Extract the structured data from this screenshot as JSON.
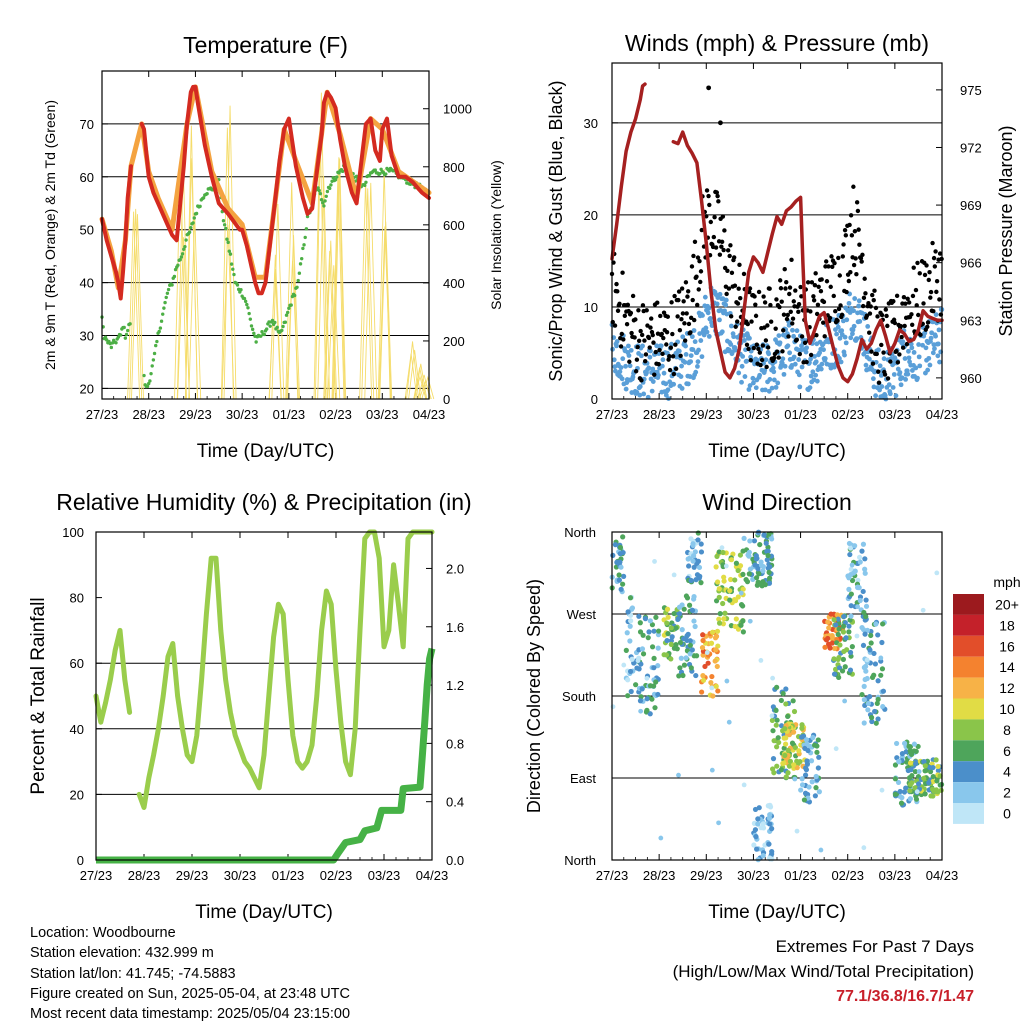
{
  "x_ticks": [
    "27/23",
    "28/23",
    "29/23",
    "30/23",
    "01/23",
    "02/23",
    "03/23",
    "04/23"
  ],
  "colors": {
    "temp_2m": "#d42a20",
    "temp_9m": "#f4a340",
    "dewpoint": "#4caf45",
    "solar": "#f5dc6a",
    "gust": "#000000",
    "wind": "#5a9fd8",
    "pressure": "#a52020",
    "rh": "#9acd4c",
    "precip": "#46b246",
    "extremes": "#c8202a"
  },
  "chart_data": [
    {
      "id": "temperature",
      "type": "line",
      "title": "Temperature (F)",
      "xlabel": "Time (Day/UTC)",
      "ylabel": "2m & 9m T (Red, Orange) & 2m Td (Green)",
      "y2label": "Solar Insolation (Yellow)",
      "x_range": [
        0,
        7
      ],
      "ylim": [
        18,
        80
      ],
      "y2lim": [
        0,
        1130
      ],
      "yticks": [
        20,
        30,
        40,
        50,
        60,
        70
      ],
      "y2ticks": [
        0,
        200,
        400,
        600,
        800,
        1000
      ],
      "grid_y": [
        20,
        30,
        40,
        50,
        60,
        70
      ],
      "series": [
        {
          "name": "2m T",
          "axis": "left",
          "x": [
            0,
            0.1,
            0.2,
            0.3,
            0.35,
            0.4,
            0.45,
            0.5,
            0.55,
            0.62,
            0.68,
            0.72,
            0.85,
            0.9,
            1.0,
            1.1,
            1.2,
            1.4,
            1.5,
            1.6,
            1.75,
            1.82,
            1.9,
            1.95,
            2.0,
            2.05,
            2.2,
            2.35,
            2.5,
            2.7,
            2.95,
            3.0,
            3.1,
            3.2,
            3.28,
            3.35,
            3.42,
            3.5,
            3.7,
            3.8,
            3.9,
            4.0,
            4.15,
            4.3,
            4.4,
            4.5,
            4.6,
            4.7,
            4.75,
            4.82,
            4.9,
            5.0,
            5.1,
            5.2,
            5.35,
            5.45,
            5.5,
            5.58,
            5.65,
            5.75,
            5.85,
            5.95,
            6.0,
            6.1,
            6.2,
            6.35,
            6.5,
            6.65,
            6.75,
            6.85,
            7.0
          ],
          "y": [
            52,
            48,
            45,
            42,
            40,
            37,
            42,
            48,
            56,
            62,
            null,
            null,
            70,
            69,
            60,
            57,
            55,
            51,
            49,
            48,
            62,
            70,
            76,
            77,
            77,
            74,
            66,
            60,
            55,
            53,
            50,
            50,
            47,
            43,
            40,
            38,
            38,
            40,
            55,
            63,
            69,
            71,
            62,
            56,
            53,
            54,
            61,
            68,
            74,
            76,
            75,
            73,
            67,
            62,
            57,
            55,
            59,
            65,
            70,
            71,
            65,
            63,
            69,
            71,
            64,
            60,
            60,
            59,
            58,
            57,
            56
          ]
        },
        {
          "name": "9m T",
          "axis": "left",
          "x": [
            0,
            0.2,
            0.35,
            0.5,
            0.62,
            0.85,
            1.0,
            1.2,
            1.5,
            1.82,
            2.0,
            2.35,
            2.7,
            3.0,
            3.28,
            3.5,
            3.9,
            4.15,
            4.5,
            4.82,
            5.1,
            5.45,
            5.75,
            6.0,
            6.35,
            7.0
          ],
          "y": [
            52,
            46,
            39,
            48,
            62,
            70,
            61,
            56,
            50,
            70,
            77,
            61,
            54,
            51,
            41,
            41,
            69,
            63,
            55,
            76,
            68,
            56,
            71,
            69,
            61,
            57
          ]
        },
        {
          "name": "2m Td",
          "axis": "left",
          "x": [
            0,
            0.05,
            0.1,
            0.2,
            0.3,
            0.4,
            0.45,
            0.5,
            0.55,
            0.62,
            0.8,
            0.9,
            0.95,
            1.0,
            1.1,
            1.2,
            1.3,
            1.4,
            1.5,
            1.6,
            1.7,
            1.8,
            1.9,
            2.0,
            2.2,
            2.4,
            2.5,
            2.6,
            2.75,
            2.85,
            3.0,
            3.1,
            3.2,
            3.3,
            3.5,
            3.65,
            3.8,
            3.9,
            4.0,
            4.2,
            4.3,
            4.4,
            4.6,
            4.7,
            4.75,
            4.85,
            5.0,
            5.2,
            5.4,
            5.5,
            5.6,
            5.7,
            5.8,
            6.0,
            6.2,
            6.4,
            6.6,
            6.8,
            7.0
          ],
          "y": [
            33,
            30,
            29,
            28,
            29,
            30,
            32,
            30,
            31,
            33,
            null,
            22,
            20,
            21,
            25,
            30,
            34,
            38,
            40,
            43,
            45,
            48,
            50,
            53,
            57,
            58,
            59,
            52,
            45,
            40,
            38,
            36,
            32,
            29,
            31,
            33,
            30,
            32,
            35,
            40,
            46,
            52,
            58,
            56,
            55,
            58,
            60,
            62,
            60,
            59,
            58,
            60,
            61,
            61,
            61,
            60,
            59,
            58,
            57
          ]
        },
        {
          "name": "Solar",
          "axis": "right",
          "peaks": [
            {
              "x": 0.7,
              "v": 780
            },
            {
              "x": 1.7,
              "v": 950
            },
            {
              "x": 1.95,
              "v": 1050
            },
            {
              "x": 2.7,
              "v": 1080
            },
            {
              "x": 3.72,
              "v": 700
            },
            {
              "x": 4.1,
              "v": 820
            },
            {
              "x": 4.7,
              "v": 1070
            },
            {
              "x": 4.92,
              "v": 600
            },
            {
              "x": 5.1,
              "v": 980
            },
            {
              "x": 5.7,
              "v": 1050
            },
            {
              "x": 6.1,
              "v": 950
            },
            {
              "x": 6.65,
              "v": 220
            },
            {
              "x": 6.8,
              "v": 150
            },
            {
              "x": 6.92,
              "v": 100
            }
          ]
        }
      ]
    },
    {
      "id": "winds",
      "type": "scatter",
      "title": "Winds (mph) & Pressure (mb)",
      "xlabel": "Time (Day/UTC)",
      "ylabel": "Sonic/Prop Wind & Gust (Blue, Black)",
      "y2label": "Station Pressure (Maroon)",
      "x_range": [
        0,
        7
      ],
      "ylim": [
        0,
        36.5
      ],
      "y2lim": [
        958.9,
        976.4
      ],
      "yticks": [
        0,
        10,
        20,
        30
      ],
      "y2ticks": [
        960,
        963,
        966,
        969,
        972,
        975
      ],
      "grid_y": [
        10,
        20,
        30
      ],
      "wind_profile": {
        "x": [
          0,
          0.3,
          0.6,
          0.9,
          1.2,
          1.5,
          1.7,
          1.9,
          2.0,
          2.1,
          2.3,
          2.5,
          2.7,
          2.9,
          3.0,
          3.2,
          3.5,
          3.8,
          4.0,
          4.2,
          4.4,
          4.6,
          4.9,
          5.1,
          5.3,
          5.5,
          5.7,
          6.0,
          6.2,
          6.5,
          6.8,
          7.0
        ],
        "wind": [
          6,
          4,
          3,
          3,
          3,
          4,
          5,
          7,
          9,
          10,
          9,
          7,
          5,
          4,
          3,
          3,
          4,
          6,
          4,
          4,
          5,
          6,
          7,
          10,
          8,
          4,
          2,
          3,
          5,
          5,
          6,
          7
        ],
        "gust": [
          12,
          8,
          6,
          6,
          6,
          8,
          11,
          17,
          19,
          19,
          17,
          13,
          10,
          8,
          7,
          7,
          8,
          11,
          8,
          8,
          10,
          11,
          13,
          19,
          15,
          8,
          5,
          6,
          9,
          10,
          12,
          13
        ]
      },
      "pressure": {
        "x": [
          0,
          0.1,
          0.2,
          0.3,
          0.4,
          0.5,
          0.6,
          0.65,
          0.7,
          0.75,
          0.8,
          1.0,
          1.2,
          1.3,
          1.4,
          1.5,
          1.6,
          1.7,
          1.8,
          1.9,
          2.0,
          2.1,
          2.2,
          2.4,
          2.5,
          2.6,
          2.7,
          2.8,
          2.9,
          3.0,
          3.1,
          3.2,
          3.3,
          3.4,
          3.5,
          3.6,
          3.7,
          3.8,
          3.9,
          4.0,
          4.05,
          4.1,
          4.2,
          4.3,
          4.4,
          4.5,
          4.6,
          4.7,
          4.8,
          4.9,
          5.0,
          5.1,
          5.2,
          5.3,
          5.4,
          5.5,
          5.6,
          5.7,
          5.8,
          5.9,
          6.0,
          6.1,
          6.2,
          6.3,
          6.4,
          6.5,
          6.6,
          6.7,
          6.8,
          6.9,
          7.0
        ],
        "y": [
          966.2,
          968,
          970,
          971.8,
          972.8,
          973.5,
          974.5,
          975.2,
          975.3,
          null,
          null,
          null,
          null,
          972.3,
          972.2,
          972.8,
          972.1,
          971.7,
          971.2,
          969.2,
          967,
          964.5,
          962.5,
          960.3,
          960,
          960.5,
          961.5,
          963.5,
          965.5,
          966.3,
          966,
          965.5,
          966.5,
          967.5,
          968.4,
          968,
          968.7,
          968.9,
          969.2,
          969.4,
          966,
          963,
          961.8,
          962.5,
          963.2,
          963.4,
          962.5,
          961.5,
          960.6,
          960,
          959.8,
          960.2,
          961,
          962,
          961.5,
          961.8,
          962.5,
          963,
          962.2,
          961.3,
          961.8,
          962.5,
          962.3,
          961.9,
          962,
          962.5,
          963.5,
          963.2,
          963.1,
          963,
          963
        ]
      }
    },
    {
      "id": "humidity",
      "type": "line",
      "title": "Relative Humidity (%) & Precipitation (in)",
      "xlabel": "Time (Day/UTC)",
      "ylabel": "Percent & Total Rainfall",
      "x_range": [
        0,
        7
      ],
      "ylim": [
        0,
        100
      ],
      "y2lim": [
        0,
        2.25
      ],
      "yticks": [
        0,
        20,
        40,
        60,
        80,
        100
      ],
      "y2ticks": [
        0.0,
        0.4,
        0.8,
        1.2,
        1.6,
        2.0
      ],
      "grid_y": [
        0,
        20,
        40,
        60
      ],
      "series": [
        {
          "name": "RH",
          "axis": "left",
          "x": [
            0,
            0.1,
            0.2,
            0.3,
            0.4,
            0.5,
            0.6,
            0.7,
            0.8,
            0.9,
            1.0,
            1.1,
            1.2,
            1.3,
            1.4,
            1.5,
            1.6,
            1.7,
            1.8,
            1.9,
            2.0,
            2.1,
            2.2,
            2.3,
            2.4,
            2.5,
            2.6,
            2.7,
            2.8,
            2.9,
            3.0,
            3.1,
            3.2,
            3.3,
            3.4,
            3.5,
            3.6,
            3.7,
            3.8,
            3.9,
            4.0,
            4.1,
            4.2,
            4.3,
            4.4,
            4.5,
            4.6,
            4.7,
            4.8,
            4.9,
            5.0,
            5.1,
            5.2,
            5.3,
            5.4,
            5.5,
            5.6,
            5.7,
            5.8,
            5.9,
            6.0,
            6.1,
            6.2,
            6.3,
            6.4,
            6.5,
            6.6,
            6.7,
            6.8,
            6.9,
            7.0
          ],
          "y": [
            50,
            42,
            48,
            55,
            64,
            70,
            55,
            45,
            null,
            20,
            16,
            25,
            32,
            40,
            50,
            62,
            66,
            50,
            40,
            32,
            30,
            38,
            55,
            75,
            92,
            92,
            70,
            55,
            45,
            38,
            34,
            30,
            28,
            25,
            22,
            32,
            50,
            68,
            78,
            75,
            55,
            38,
            30,
            28,
            30,
            35,
            50,
            70,
            82,
            78,
            58,
            42,
            30,
            26,
            40,
            70,
            98,
            100,
            100,
            92,
            65,
            70,
            90,
            78,
            65,
            98,
            100,
            100,
            100,
            100,
            100
          ]
        },
        {
          "name": "Precip",
          "axis": "right",
          "x": [
            0,
            4.95,
            5.05,
            5.2,
            5.5,
            5.6,
            5.85,
            5.95,
            6.35,
            6.4,
            6.75,
            6.8,
            6.85,
            6.9,
            6.95,
            7.0
          ],
          "y": [
            0,
            0,
            0.05,
            0.12,
            0.14,
            0.2,
            0.22,
            0.34,
            0.34,
            0.49,
            0.5,
            0.72,
            0.95,
            1.2,
            1.38,
            1.45
          ]
        }
      ]
    },
    {
      "id": "direction",
      "type": "scatter",
      "title": "Wind Direction",
      "xlabel": "Time (Day/UTC)",
      "ylabel": "Direction (Colored By Speed)",
      "x_range": [
        0,
        7
      ],
      "ylim": [
        0,
        360
      ],
      "ytick_labels": [
        "North",
        "East",
        "South",
        "West",
        "North"
      ],
      "yticks": [
        0,
        90,
        180,
        270,
        360
      ],
      "legend_title": "mph",
      "legend_labels": [
        "0",
        "2",
        "4",
        "6",
        "8",
        "10",
        "12",
        "14",
        "16",
        "18",
        "20+"
      ],
      "legend_colors": [
        "#bfe6f7",
        "#89c7ec",
        "#4b8fca",
        "#4ea55b",
        "#8ac54a",
        "#e1dc45",
        "#f7b247",
        "#f4822f",
        "#e24e2a",
        "#c4212a",
        "#9c1a1e"
      ],
      "clusters": [
        {
          "x0": 0.0,
          "x1": 0.25,
          "d0": 290,
          "d1": 355,
          "spd": 4
        },
        {
          "x0": 0.3,
          "x1": 0.6,
          "d0": 180,
          "d1": 290,
          "spd": 3
        },
        {
          "x0": 0.6,
          "x1": 1.0,
          "d0": 160,
          "d1": 270,
          "spd": 4
        },
        {
          "x0": 1.1,
          "x1": 1.4,
          "d0": 220,
          "d1": 280,
          "spd": 7
        },
        {
          "x0": 1.4,
          "x1": 1.8,
          "d0": 200,
          "d1": 290,
          "spd": 4
        },
        {
          "x0": 1.6,
          "x1": 1.9,
          "d0": 300,
          "d1": 360,
          "spd": 3
        },
        {
          "x0": 1.9,
          "x1": 2.25,
          "d0": 180,
          "d1": 250,
          "spd": 13
        },
        {
          "x0": 2.2,
          "x1": 2.8,
          "d0": 250,
          "d1": 340,
          "spd": 8
        },
        {
          "x0": 2.8,
          "x1": 3.4,
          "d0": 300,
          "d1": 360,
          "spd": 4
        },
        {
          "x0": 3.0,
          "x1": 3.4,
          "d0": 0,
          "d1": 60,
          "spd": 2
        },
        {
          "x0": 3.4,
          "x1": 3.9,
          "d0": 90,
          "d1": 190,
          "spd": 6
        },
        {
          "x0": 3.6,
          "x1": 4.1,
          "d0": 100,
          "d1": 150,
          "spd": 10
        },
        {
          "x0": 4.0,
          "x1": 4.4,
          "d0": 60,
          "d1": 140,
          "spd": 4
        },
        {
          "x0": 4.5,
          "x1": 4.9,
          "d0": 230,
          "d1": 270,
          "spd": 14
        },
        {
          "x0": 4.7,
          "x1": 5.1,
          "d0": 200,
          "d1": 270,
          "spd": 6
        },
        {
          "x0": 5.0,
          "x1": 5.4,
          "d0": 260,
          "d1": 350,
          "spd": 3
        },
        {
          "x0": 5.3,
          "x1": 5.8,
          "d0": 150,
          "d1": 270,
          "spd": 4
        },
        {
          "x0": 6.0,
          "x1": 6.5,
          "d0": 60,
          "d1": 130,
          "spd": 4
        },
        {
          "x0": 6.3,
          "x1": 7.0,
          "d0": 70,
          "d1": 110,
          "spd": 7
        }
      ]
    }
  ],
  "info": {
    "location": "Location: Woodbourne",
    "elevation": "Station elevation: 432.999 m",
    "latlon": "Station lat/lon: 41.745; -74.5883",
    "created": "Figure created on Sun, 2025-05-04, at 23:48 UTC",
    "recent": "Most recent data timestamp: 2025/05/04 23:15:00"
  },
  "extremes": {
    "title": "Extremes For Past 7 Days",
    "subtitle": "(High/Low/Max Wind/Total Precipitation)",
    "values": "77.1/36.8/16.7/1.47"
  }
}
